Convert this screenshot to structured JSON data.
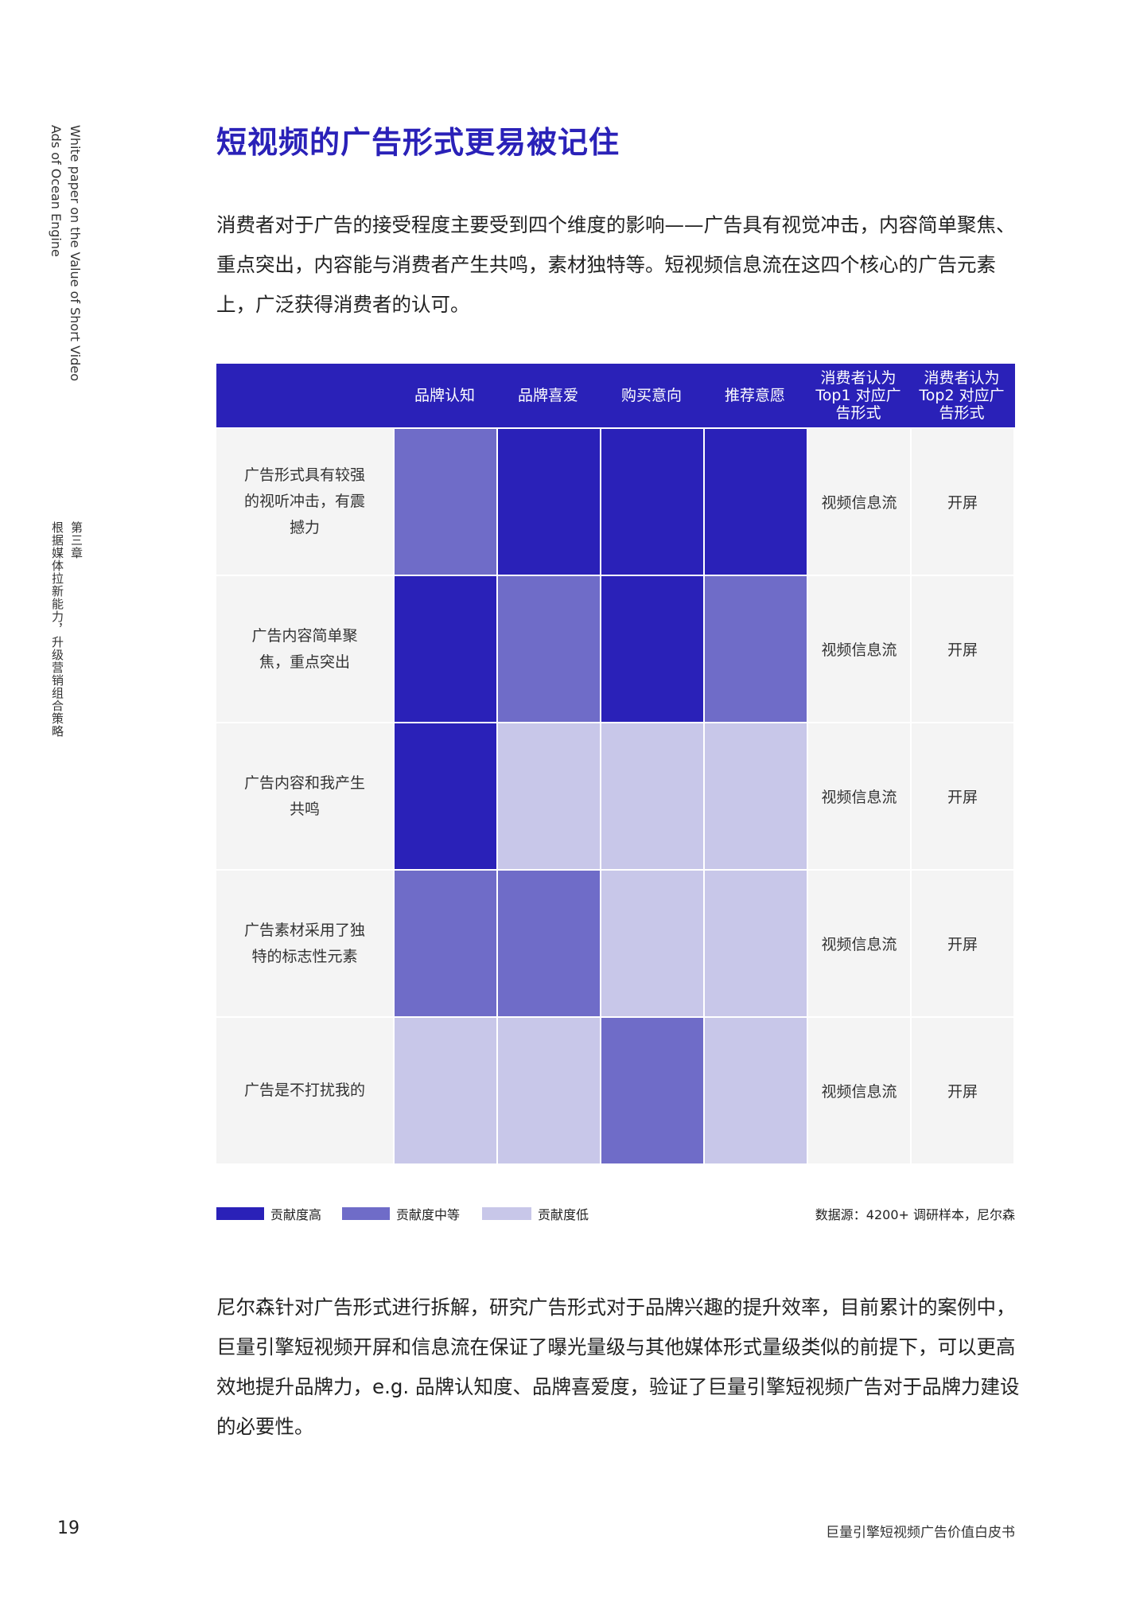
{
  "sidebar": {
    "english_title": "White paper on the Value of Short Video\nAds of Ocean Engine",
    "chapter": "第三章",
    "chapter_title": "根据媒体拉新能力，升级营销组合策略"
  },
  "title": "短视频的广告形式更易被记住",
  "intro": "消费者对于广告的接受程度主要受到四个维度的影响——广告具有视觉冲击，内容简单聚焦、重点突出，内容能与消费者产生共鸣，素材独特等。短视频信息流在这四个核心的广告元素上，广泛获得消费者的认可。",
  "table": {
    "headers": [
      "品牌认知",
      "品牌喜爱",
      "购买意向",
      "推荐意愿",
      "消费者认为\nTop1 对应广\n告形式",
      "消费者认为\nTop2 对应广\n告形式"
    ],
    "levels_colors": {
      "high": "#2a21b8",
      "mid": "#6f6cc8",
      "low": "#c8c7e9"
    },
    "rows": [
      {
        "label": "广告形式具有较强的视听冲击，有震撼力",
        "levels": [
          "mid",
          "high",
          "high",
          "high"
        ],
        "top1": "视频信息流",
        "top2": "开屏"
      },
      {
        "label": "广告内容简单聚焦，重点突出",
        "levels": [
          "high",
          "mid",
          "high",
          "mid"
        ],
        "top1": "视频信息流",
        "top2": "开屏"
      },
      {
        "label": "广告内容和我产生共鸣",
        "levels": [
          "high",
          "low",
          "low",
          "low"
        ],
        "top1": "视频信息流",
        "top2": "开屏"
      },
      {
        "label": "广告素材采用了独特的标志性元素",
        "levels": [
          "mid",
          "mid",
          "low",
          "low"
        ],
        "top1": "视频信息流",
        "top2": "开屏"
      },
      {
        "label": "广告是不打扰我的",
        "levels": [
          "low",
          "low",
          "mid",
          "low"
        ],
        "top1": "视频信息流",
        "top2": "开屏"
      }
    ]
  },
  "legend": {
    "high": "贡献度高",
    "mid": "贡献度中等",
    "low": "贡献度低",
    "source": "数据源：4200+ 调研样本，尼尔森"
  },
  "paragraph": "尼尔森针对广告形式进行拆解，研究广告形式对于品牌兴趣的提升效率，目前累计的案例中，巨量引擎短视频开屏和信息流在保证了曝光量级与其他媒体形式量级类似的前提下，可以更高效地提升品牌力，e.g. 品牌认知度、品牌喜爱度，验证了巨量引擎短视频广告对于品牌力建设的必要性。",
  "page_number": "19",
  "footer": "巨量引擎短视频广告价值白皮书"
}
